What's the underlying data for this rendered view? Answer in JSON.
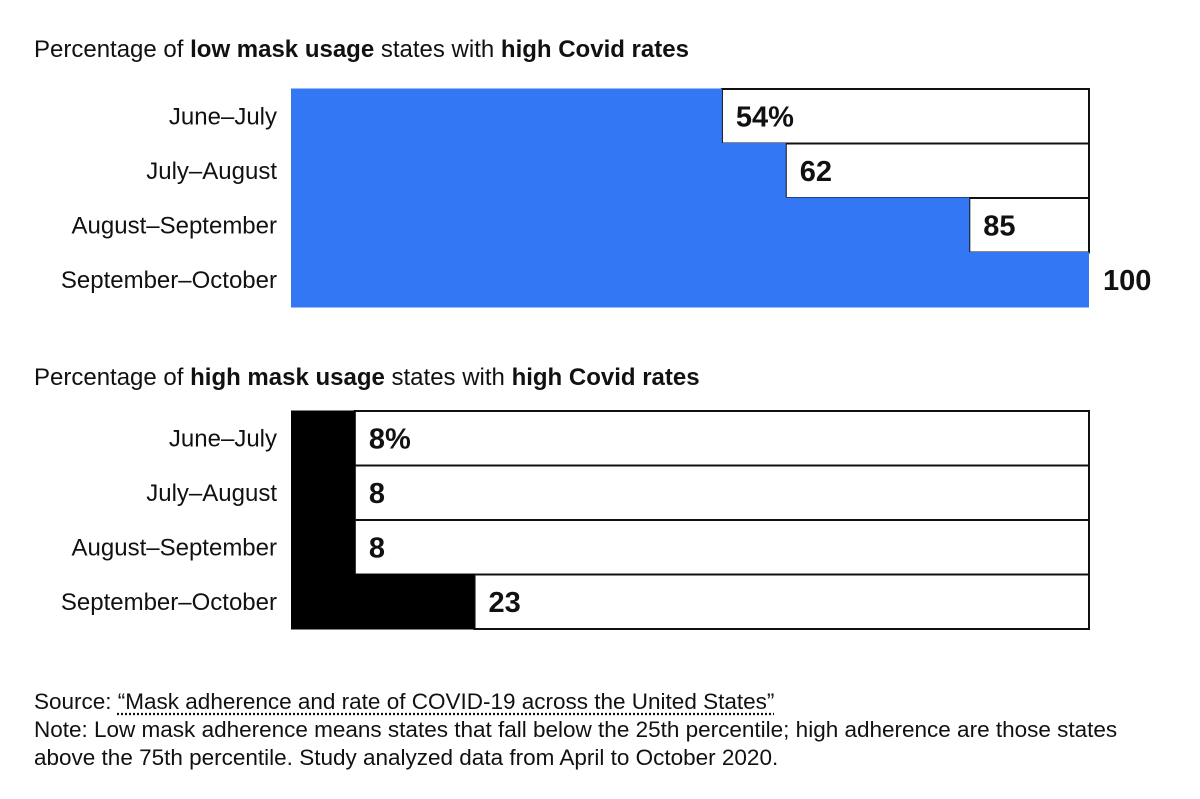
{
  "chart_data": [
    {
      "type": "bar",
      "orientation": "horizontal",
      "title_parts": [
        {
          "text": "Percentage of ",
          "bold": false
        },
        {
          "text": "low mask usage",
          "bold": true
        },
        {
          "text": " states with ",
          "bold": false
        },
        {
          "text": "high Covid rates",
          "bold": true
        }
      ],
      "categories": [
        "June–July",
        "July–August",
        "August–September",
        "September–October"
      ],
      "values": [
        54,
        62,
        85,
        100
      ],
      "value_labels": [
        "54%",
        "62",
        "85",
        "100"
      ],
      "xlim": [
        0,
        100
      ],
      "bar_color": "#3377f5",
      "remainder_color": "#ffffff",
      "outline_color": "#111111"
    },
    {
      "type": "bar",
      "orientation": "horizontal",
      "title_parts": [
        {
          "text": "Percentage of ",
          "bold": false
        },
        {
          "text": "high mask usage",
          "bold": true
        },
        {
          "text": " states with ",
          "bold": false
        },
        {
          "text": "high Covid rates",
          "bold": true
        }
      ],
      "categories": [
        "June–July",
        "July–August",
        "August–September",
        "September–October"
      ],
      "values": [
        8,
        8,
        8,
        23
      ],
      "value_labels": [
        "8%",
        "8",
        "8",
        "23"
      ],
      "xlim": [
        0,
        100
      ],
      "bar_color": "#000000",
      "remainder_color": "#ffffff",
      "outline_color": "#111111"
    }
  ],
  "footer": {
    "source_prefix": "Source: ",
    "source_link": "“Mask adherence and rate of COVID-19 across the United States”",
    "note": "Note: Low mask adherence means states that fall below the 25th percentile; high adherence are those states above the 75th percentile. Study analyzed data from April to October 2020."
  }
}
